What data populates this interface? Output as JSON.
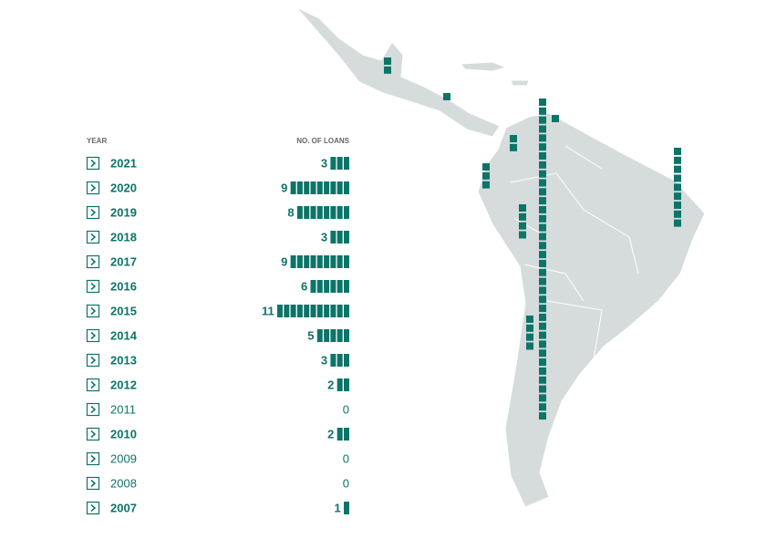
{
  "header": {
    "year": "YEAR",
    "loans": "NO. OF LOANS"
  },
  "rows": [
    {
      "year": "2021",
      "count": 3
    },
    {
      "year": "2020",
      "count": 9
    },
    {
      "year": "2019",
      "count": 8
    },
    {
      "year": "2018",
      "count": 3
    },
    {
      "year": "2017",
      "count": 9
    },
    {
      "year": "2016",
      "count": 6
    },
    {
      "year": "2015",
      "count": 11
    },
    {
      "year": "2014",
      "count": 5
    },
    {
      "year": "2013",
      "count": 3
    },
    {
      "year": "2012",
      "count": 2
    },
    {
      "year": "2011",
      "count": 0
    },
    {
      "year": "2010",
      "count": 2
    },
    {
      "year": "2009",
      "count": 0
    },
    {
      "year": "2008",
      "count": 0
    },
    {
      "year": "2007",
      "count": 1
    }
  ],
  "map_markers": [
    2,
    1,
    2,
    3,
    4,
    36,
    1,
    9,
    4
  ],
  "color": "#0d7468"
}
